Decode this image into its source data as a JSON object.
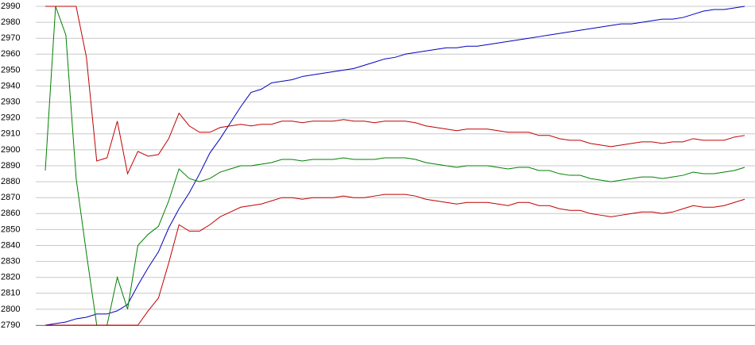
{
  "chart_data": {
    "type": "line",
    "ylim": [
      2790,
      2990
    ],
    "yticks": [
      2790,
      2800,
      2810,
      2820,
      2830,
      2840,
      2850,
      2860,
      2870,
      2880,
      2890,
      2900,
      2910,
      2920,
      2930,
      2940,
      2950,
      2960,
      2970,
      2980,
      2990
    ],
    "grid": true,
    "series": [
      {
        "color": "#0000c0",
        "values": [
          2790,
          2791,
          2792,
          2794,
          2795,
          2797,
          2797,
          2799,
          2803,
          2815,
          2826,
          2836,
          2851,
          2863,
          2873,
          2885,
          2898,
          2907,
          2917,
          2927,
          2936,
          2938,
          2942,
          2943,
          2944,
          2946,
          2947,
          2948,
          2949,
          2950,
          2951,
          2953,
          2955,
          2957,
          2958,
          2960,
          2961,
          2962,
          2963,
          2964,
          2964,
          2965,
          2965,
          2966,
          2967,
          2968,
          2969,
          2970,
          2971,
          2972,
          2973,
          2974,
          2975,
          2976,
          2977,
          2978,
          2979,
          2979,
          2980,
          2981,
          2982,
          2982,
          2983,
          2985,
          2987,
          2988,
          2988,
          2989,
          2990
        ]
      },
      {
        "color": "#008000",
        "values": [
          2887,
          2990,
          2972,
          2882,
          2835,
          2790,
          2790,
          2820,
          2800,
          2840,
          2847,
          2852,
          2868,
          2888,
          2882,
          2880,
          2882,
          2886,
          2888,
          2890,
          2890,
          2891,
          2892,
          2894,
          2894,
          2893,
          2894,
          2894,
          2894,
          2895,
          2894,
          2894,
          2894,
          2895,
          2895,
          2895,
          2894,
          2892,
          2891,
          2890,
          2889,
          2890,
          2890,
          2890,
          2889,
          2888,
          2889,
          2889,
          2887,
          2887,
          2885,
          2884,
          2884,
          2882,
          2881,
          2880,
          2881,
          2882,
          2883,
          2883,
          2882,
          2883,
          2884,
          2886,
          2885,
          2885,
          2886,
          2887,
          2889
        ]
      },
      {
        "color": "#c00000",
        "values": [
          2990,
          2990,
          2990,
          2990,
          2958,
          2893,
          2895,
          2918,
          2885,
          2899,
          2896,
          2897,
          2907,
          2923,
          2915,
          2911,
          2911,
          2914,
          2915,
          2916,
          2915,
          2916,
          2916,
          2918,
          2918,
          2917,
          2918,
          2918,
          2918,
          2919,
          2918,
          2918,
          2917,
          2918,
          2918,
          2918,
          2917,
          2915,
          2914,
          2913,
          2912,
          2913,
          2913,
          2913,
          2912,
          2911,
          2911,
          2911,
          2909,
          2909,
          2907,
          2906,
          2906,
          2904,
          2903,
          2902,
          2903,
          2904,
          2905,
          2905,
          2904,
          2905,
          2905,
          2907,
          2906,
          2906,
          2906,
          2908,
          2909
        ]
      },
      {
        "color": "#c00000",
        "values": [
          2790,
          2790,
          2790,
          2790,
          2790,
          2790,
          2790,
          2790,
          2790,
          2790,
          2799,
          2807,
          2829,
          2853,
          2849,
          2849,
          2853,
          2858,
          2861,
          2864,
          2865,
          2866,
          2868,
          2870,
          2870,
          2869,
          2870,
          2870,
          2870,
          2871,
          2870,
          2870,
          2871,
          2872,
          2872,
          2872,
          2871,
          2869,
          2868,
          2867,
          2866,
          2867,
          2867,
          2867,
          2866,
          2865,
          2867,
          2867,
          2865,
          2865,
          2863,
          2862,
          2862,
          2860,
          2859,
          2858,
          2859,
          2860,
          2861,
          2861,
          2860,
          2861,
          2863,
          2865,
          2864,
          2864,
          2865,
          2867,
          2869
        ]
      }
    ]
  }
}
